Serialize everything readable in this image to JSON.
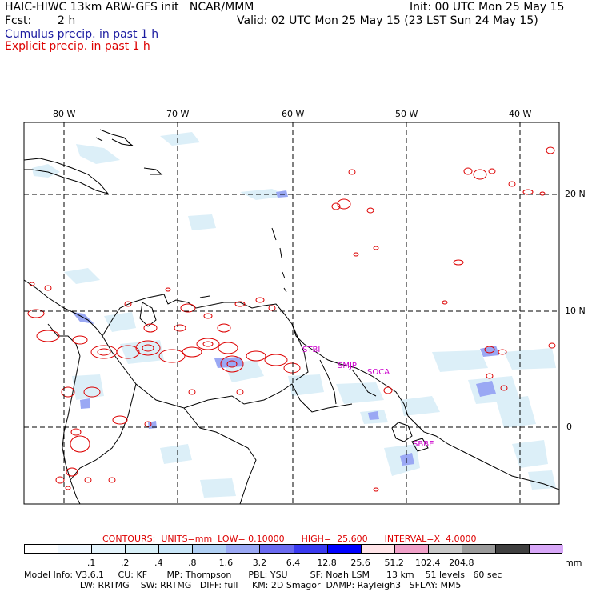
{
  "header": {
    "title": "HAIC-HIWC 13km ARW-GFS init   NCAR/MMM",
    "init": "Init: 00 UTC Mon 25 May 15",
    "fcst_label": "Fcst:",
    "fcst_value": "2 h",
    "valid": "Valid: 02 UTC Mon 25 May 15 (23 LST Sun 24 May 15)",
    "legend_cumulus": "Cumulus precip. in past 1 h",
    "legend_explicit": "Explicit precip. in past 1 h",
    "color_cumulus": "#1a1aa0",
    "color_explicit": "#dd0000"
  },
  "map": {
    "lon_labels": [
      "80 W",
      "70 W",
      "60 W",
      "50 W",
      "40 W"
    ],
    "lat_labels": [
      "20 N",
      "10 N",
      "0"
    ],
    "places": [
      "STBI",
      "SMJP",
      "SOCA",
      "SBBE"
    ],
    "place_color": "#cc00cc"
  },
  "contours": {
    "label": "CONTOURS:  UNITS=mm  LOW= 0.10000      HIGH=  25.600      INTERVAL=X  4.0000"
  },
  "colorbar": {
    "unit": "mm",
    "colors": [
      "#ffffff",
      "#f0f8ff",
      "#e4f4fc",
      "#d8f0f8",
      "#c8e6f8",
      "#b0d0f4",
      "#9aa8f4",
      "#6a6af0",
      "#3a3af0",
      "#0000ff",
      "#ffe4e8",
      "#f0a0c8",
      "#c8c8c8",
      "#9a9a9a",
      "#404040",
      "#d8a8f8"
    ],
    "labels": [
      ".1",
      ".2",
      ".4",
      ".8",
      "1.6",
      "3.2",
      "6.4",
      "12.8",
      "25.6",
      "51.2",
      "102.4",
      "204.8"
    ]
  },
  "model_info": {
    "line1": "Model Info: V3.6.1     CU: KF       MP: Thompson      PBL: YSU        SF: Noah LSM      13 km    51 levels   60 sec",
    "line2": "                    LW: RRTMG    SW: RRTMG   DIFF: full     KM: 2D Smagor  DAMP: Rayleigh3   SFLAY: MM5"
  }
}
